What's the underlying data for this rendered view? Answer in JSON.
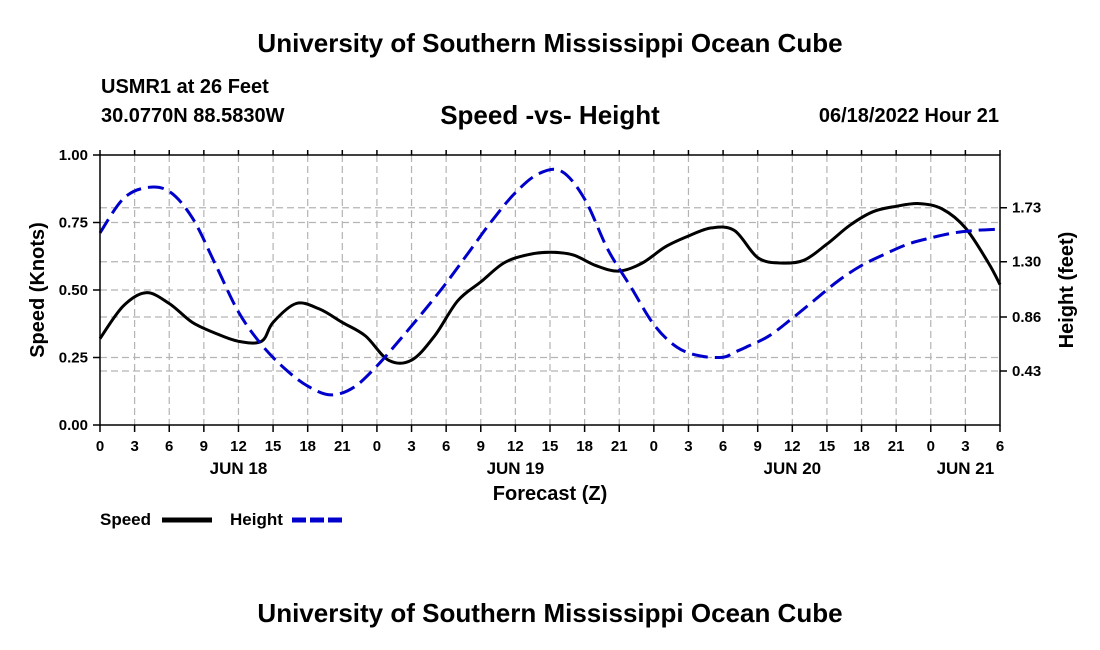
{
  "header": {
    "title": "University of Southern Mississippi Ocean Cube",
    "station": "USMR1 at 26 Feet",
    "coords": "30.0770N  88.5830W",
    "subtitle": "Speed -vs- Height",
    "datetime": "06/18/2022 Hour 21"
  },
  "footer": {
    "title": "University of Southern Mississippi Ocean Cube"
  },
  "colors": {
    "speed": "#000000",
    "height": "#0000cc",
    "grid": "#b4b4b4"
  },
  "chart_data": {
    "type": "line",
    "title": "Speed -vs- Height",
    "xlabel": "Forecast (Z)",
    "ylabel": "Speed (Knots)",
    "y2label": "Height (feet)",
    "xlim": [
      0,
      78
    ],
    "ylim": [
      0,
      1.0
    ],
    "y2lim": [
      0.0,
      2.15
    ],
    "y_ticks": [
      0.0,
      0.25,
      0.5,
      0.75,
      1.0
    ],
    "y_tick_labels": [
      "0.00",
      "0.25",
      "0.50",
      "0.75",
      "1.00"
    ],
    "y2_ticks": [
      0.43,
      0.86,
      1.3,
      1.73
    ],
    "y2_tick_labels": [
      "0.43",
      "0.86",
      "1.30",
      "1.73"
    ],
    "x_ticks": [
      0,
      3,
      6,
      9,
      12,
      15,
      18,
      21,
      24,
      27,
      30,
      33,
      36,
      39,
      42,
      45,
      48,
      51,
      54,
      57,
      60,
      63,
      66,
      69,
      72,
      75,
      78
    ],
    "x_tick_labels": [
      "0",
      "3",
      "6",
      "9",
      "12",
      "15",
      "18",
      "21",
      "0",
      "3",
      "6",
      "9",
      "12",
      "15",
      "18",
      "21",
      "0",
      "3",
      "6",
      "9",
      "12",
      "15",
      "18",
      "21",
      "0",
      "3",
      "6"
    ],
    "date_labels": [
      {
        "x": 12,
        "label": "JUN 18"
      },
      {
        "x": 36,
        "label": "JUN 19"
      },
      {
        "x": 60,
        "label": "JUN 20"
      },
      {
        "x": 75,
        "label": "JUN 21"
      }
    ],
    "legend": [
      "Speed",
      "Height"
    ],
    "legend_position": "bottom-left",
    "series": [
      {
        "name": "Speed",
        "axis": "left",
        "style": "solid",
        "x": [
          0,
          2,
          4,
          6,
          8,
          10,
          12,
          14,
          15,
          17,
          19,
          21,
          23,
          25,
          27,
          29,
          31,
          33,
          35,
          37,
          39,
          41,
          43,
          45,
          47,
          49,
          51,
          53,
          55,
          57,
          59,
          61,
          63,
          65,
          67,
          69,
          71,
          73,
          75,
          77,
          78
        ],
        "values": [
          0.32,
          0.44,
          0.49,
          0.45,
          0.38,
          0.34,
          0.31,
          0.31,
          0.38,
          0.45,
          0.43,
          0.38,
          0.33,
          0.24,
          0.24,
          0.33,
          0.46,
          0.53,
          0.6,
          0.63,
          0.64,
          0.63,
          0.59,
          0.57,
          0.6,
          0.66,
          0.7,
          0.73,
          0.72,
          0.62,
          0.6,
          0.61,
          0.67,
          0.74,
          0.79,
          0.81,
          0.82,
          0.8,
          0.73,
          0.6,
          0.52
        ]
      },
      {
        "name": "Height",
        "axis": "right",
        "style": "dashed",
        "x": [
          0,
          2,
          4,
          6,
          8,
          10,
          12,
          14,
          16,
          18,
          20,
          22,
          24,
          26,
          28,
          30,
          32,
          34,
          36,
          38,
          40,
          42,
          44,
          46,
          48,
          50,
          52,
          54,
          55,
          56,
          58,
          60,
          62,
          64,
          66,
          68,
          70,
          72,
          74,
          76,
          78
        ],
        "values": [
          1.53,
          1.8,
          1.89,
          1.86,
          1.65,
          1.28,
          0.9,
          0.64,
          0.45,
          0.31,
          0.24,
          0.3,
          0.47,
          0.68,
          0.9,
          1.13,
          1.38,
          1.63,
          1.85,
          2.0,
          2.02,
          1.8,
          1.4,
          1.1,
          0.8,
          0.62,
          0.55,
          0.54,
          0.58,
          0.62,
          0.71,
          0.85,
          1.0,
          1.15,
          1.27,
          1.36,
          1.44,
          1.49,
          1.53,
          1.55,
          1.56
        ]
      }
    ]
  }
}
